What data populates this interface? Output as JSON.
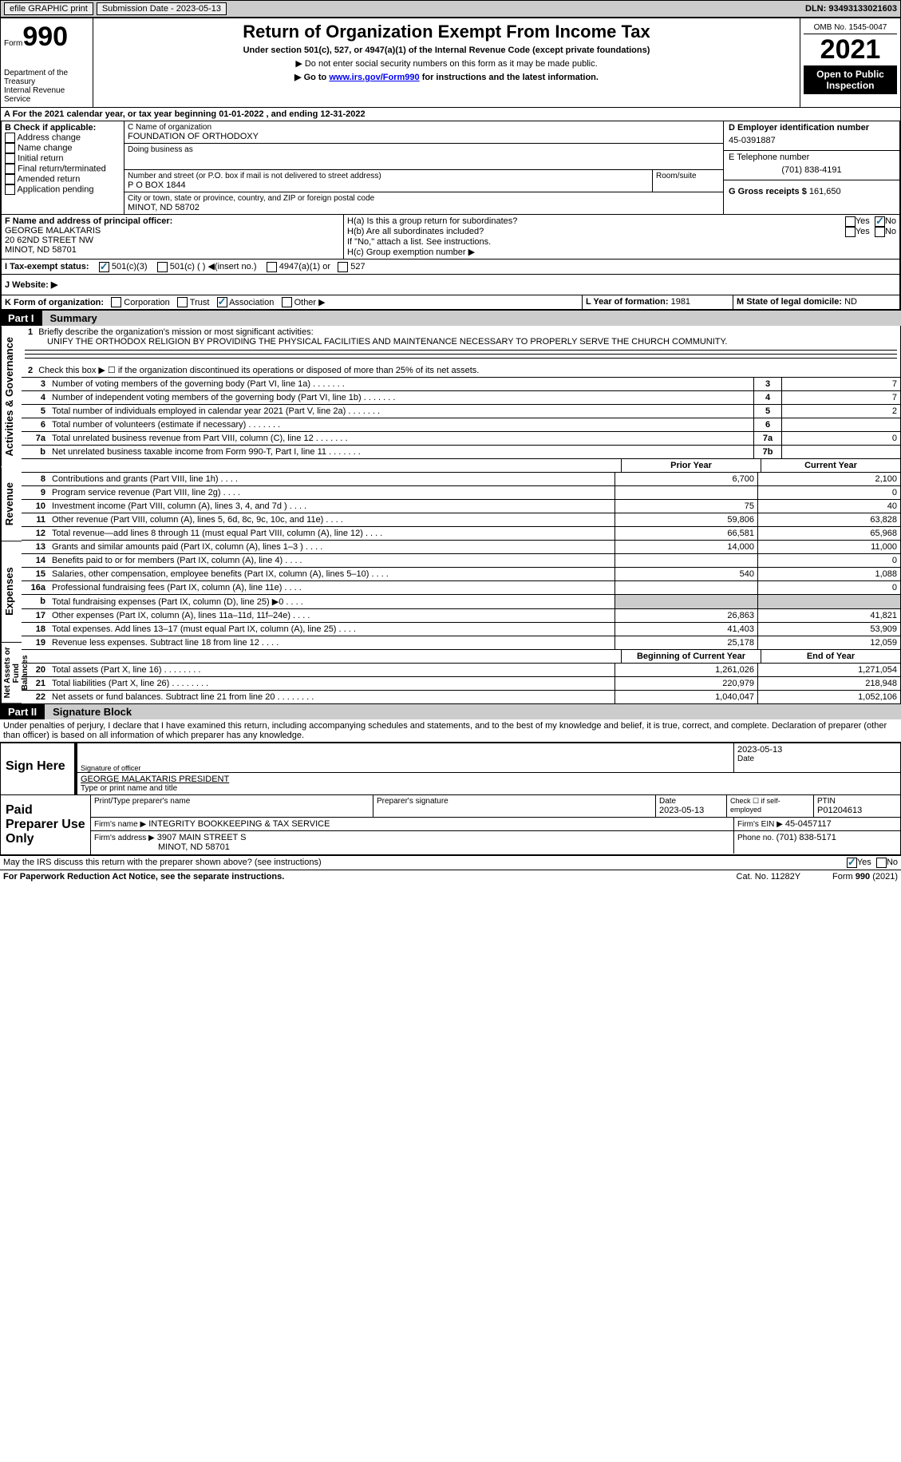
{
  "topbar": {
    "efile": "efile GRAPHIC print",
    "submission": "Submission Date - 2023-05-13",
    "dln": "DLN: 93493133021603"
  },
  "header": {
    "form_label": "Form",
    "form_num": "990",
    "title": "Return of Organization Exempt From Income Tax",
    "subtitle": "Under section 501(c), 527, or 4947(a)(1) of the Internal Revenue Code (except private foundations)",
    "note1": "▶ Do not enter social security numbers on this form as it may be made public.",
    "note2_pre": "▶ Go to ",
    "note2_link": "www.irs.gov/Form990",
    "note2_post": " for instructions and the latest information.",
    "dept": "Department of the Treasury",
    "irs": "Internal Revenue Service",
    "omb": "OMB No. 1545-0047",
    "year": "2021",
    "open": "Open to Public Inspection"
  },
  "sectionA": {
    "period": "A For the 2021 calendar year, or tax year beginning 01-01-2022    , and ending 12-31-2022",
    "b_label": "B Check if applicable:",
    "b_opts": [
      "Address change",
      "Name change",
      "Initial return",
      "Final return/terminated",
      "Amended return",
      "Application pending"
    ],
    "c_label": "C Name of organization",
    "org_name": "FOUNDATION OF ORTHODOXY",
    "dba_label": "Doing business as",
    "addr_label": "Number and street (or P.O. box if mail is not delivered to street address)",
    "room": "Room/suite",
    "addr1": "P O BOX 1844",
    "city_label": "City or town, state or province, country, and ZIP or foreign postal code",
    "addr2": "MINOT, ND  58702",
    "d_label": "D Employer identification number",
    "ein": "45-0391887",
    "e_label": "E Telephone number",
    "phone": "(701) 838-4191",
    "g_label": "G Gross receipts $",
    "gross": "161,650",
    "f_label": "F Name and address of principal officer:",
    "officer1": "GEORGE MALAKTARIS",
    "officer2": "20 62ND STREET NW",
    "officer3": "MINOT, ND  58701",
    "ha": "H(a)  Is this a group return for subordinates?",
    "hb": "H(b)  Are all subordinates included?",
    "hb_note": "If \"No,\" attach a list. See instructions.",
    "hc": "H(c)  Group exemption number ▶",
    "i_label": "I  Tax-exempt status:",
    "i_501c3": "501(c)(3)",
    "i_501c": "501(c) (  ) ◀(insert no.)",
    "i_4947": "4947(a)(1) or",
    "i_527": "527",
    "j_label": "J  Website: ▶",
    "k_label": "K Form of organization:",
    "k_corp": "Corporation",
    "k_trust": "Trust",
    "k_assoc": "Association",
    "k_other": "Other ▶",
    "l_label": "L Year of formation:",
    "l_val": "1981",
    "m_label": "M State of legal domicile:",
    "m_val": "ND",
    "yes": "Yes",
    "no": "No"
  },
  "part1": {
    "num": "Part I",
    "title": "Summary",
    "line1_label": "Briefly describe the organization's mission or most significant activities:",
    "line1_text": "UNIFY THE ORTHODOX RELIGION BY PROVIDING THE PHYSICAL FACILITIES AND MAINTENANCE NECESSARY TO PROPERLY SERVE THE CHURCH COMMUNITY.",
    "line2": "Check this box ▶ ☐ if the organization discontinued its operations or disposed of more than 25% of its net assets.",
    "vert1": "Activities & Governance",
    "vert2": "Revenue",
    "vert3": "Expenses",
    "vert4": "Net Assets or Fund Balances",
    "lines_gov": [
      {
        "n": "3",
        "d": "Number of voting members of the governing body (Part VI, line 1a)",
        "box": "3",
        "v": "7"
      },
      {
        "n": "4",
        "d": "Number of independent voting members of the governing body (Part VI, line 1b)",
        "box": "4",
        "v": "7"
      },
      {
        "n": "5",
        "d": "Total number of individuals employed in calendar year 2021 (Part V, line 2a)",
        "box": "5",
        "v": "2"
      },
      {
        "n": "6",
        "d": "Total number of volunteers (estimate if necessary)",
        "box": "6",
        "v": ""
      },
      {
        "n": "7a",
        "d": "Total unrelated business revenue from Part VIII, column (C), line 12",
        "box": "7a",
        "v": "0"
      },
      {
        "n": "b",
        "d": "Net unrelated business taxable income from Form 990-T, Part I, line 11",
        "box": "7b",
        "v": ""
      }
    ],
    "col_prior": "Prior Year",
    "col_current": "Current Year",
    "lines_rev": [
      {
        "n": "8",
        "d": "Contributions and grants (Part VIII, line 1h)",
        "p": "6,700",
        "c": "2,100"
      },
      {
        "n": "9",
        "d": "Program service revenue (Part VIII, line 2g)",
        "p": "",
        "c": "0"
      },
      {
        "n": "10",
        "d": "Investment income (Part VIII, column (A), lines 3, 4, and 7d )",
        "p": "75",
        "c": "40"
      },
      {
        "n": "11",
        "d": "Other revenue (Part VIII, column (A), lines 5, 6d, 8c, 9c, 10c, and 11e)",
        "p": "59,806",
        "c": "63,828"
      },
      {
        "n": "12",
        "d": "Total revenue—add lines 8 through 11 (must equal Part VIII, column (A), line 12)",
        "p": "66,581",
        "c": "65,968"
      }
    ],
    "lines_exp": [
      {
        "n": "13",
        "d": "Grants and similar amounts paid (Part IX, column (A), lines 1–3 )",
        "p": "14,000",
        "c": "11,000"
      },
      {
        "n": "14",
        "d": "Benefits paid to or for members (Part IX, column (A), line 4)",
        "p": "",
        "c": "0"
      },
      {
        "n": "15",
        "d": "Salaries, other compensation, employee benefits (Part IX, column (A), lines 5–10)",
        "p": "540",
        "c": "1,088"
      },
      {
        "n": "16a",
        "d": "Professional fundraising fees (Part IX, column (A), line 11e)",
        "p": "",
        "c": "0"
      },
      {
        "n": "b",
        "d": "Total fundraising expenses (Part IX, column (D), line 25) ▶0",
        "p": "shade",
        "c": "shade"
      },
      {
        "n": "17",
        "d": "Other expenses (Part IX, column (A), lines 11a–11d, 11f–24e)",
        "p": "26,863",
        "c": "41,821"
      },
      {
        "n": "18",
        "d": "Total expenses. Add lines 13–17 (must equal Part IX, column (A), line 25)",
        "p": "41,403",
        "c": "53,909"
      },
      {
        "n": "19",
        "d": "Revenue less expenses. Subtract line 18 from line 12",
        "p": "25,178",
        "c": "12,059"
      }
    ],
    "col_begin": "Beginning of Current Year",
    "col_end": "End of Year",
    "lines_net": [
      {
        "n": "20",
        "d": "Total assets (Part X, line 16)",
        "p": "1,261,026",
        "c": "1,271,054"
      },
      {
        "n": "21",
        "d": "Total liabilities (Part X, line 26)",
        "p": "220,979",
        "c": "218,948"
      },
      {
        "n": "22",
        "d": "Net assets or fund balances. Subtract line 21 from line 20",
        "p": "1,040,047",
        "c": "1,052,106"
      }
    ]
  },
  "part2": {
    "num": "Part II",
    "title": "Signature Block",
    "penalty": "Under penalties of perjury, I declare that I have examined this return, including accompanying schedules and statements, and to the best of my knowledge and belief, it is true, correct, and complete. Declaration of preparer (other than officer) is based on all information of which preparer has any knowledge.",
    "sign_here": "Sign Here",
    "sig_label": "Signature of officer",
    "date_label": "Date",
    "sig_date": "2023-05-13",
    "name_line": "GEORGE MALAKTARIS  PRESIDENT",
    "name_label": "Type or print name and title",
    "paid": "Paid Preparer Use Only",
    "prep_name_label": "Print/Type preparer's name",
    "prep_sig_label": "Preparer's signature",
    "prep_date_label": "Date",
    "prep_date": "2023-05-13",
    "self_emp": "Check ☐ if self-employed",
    "ptin_label": "PTIN",
    "ptin": "P01204613",
    "firm_name_label": "Firm's name    ▶",
    "firm_name": "INTEGRITY BOOKKEEPING & TAX SERVICE",
    "firm_ein_label": "Firm's EIN ▶",
    "firm_ein": "45-0457117",
    "firm_addr_label": "Firm's address ▶",
    "firm_addr1": "3907 MAIN STREET S",
    "firm_addr2": "MINOT, ND  58701",
    "phone_label": "Phone no.",
    "phone": "(701) 838-5171",
    "discuss": "May the IRS discuss this return with the preparer shown above? (see instructions)"
  },
  "footer": {
    "pra": "For Paperwork Reduction Act Notice, see the separate instructions.",
    "cat": "Cat. No. 11282Y",
    "form": "Form 990 (2021)"
  }
}
